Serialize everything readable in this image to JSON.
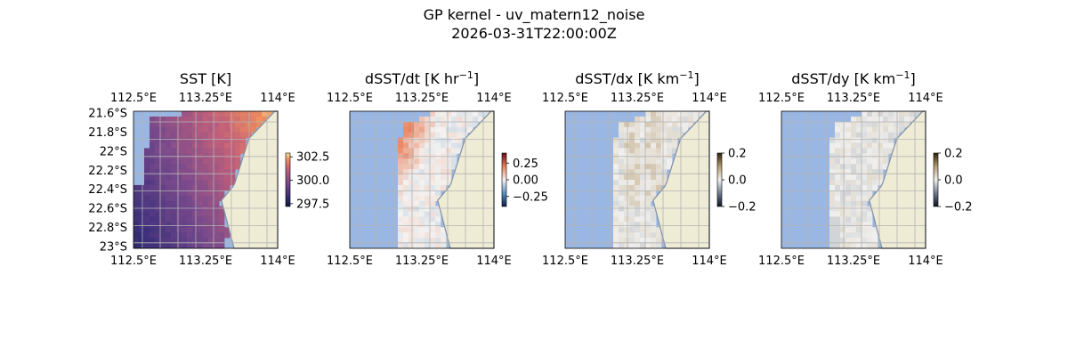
{
  "figure": {
    "title_line1": "GP kernel - uv_matern12_noise",
    "title_line2": "2026-03-31T22:00:00Z"
  },
  "colors": {
    "ocean_mask": "#9ab7e3",
    "land": "#efecd6",
    "coast": "#7f8ea3",
    "grid": "#b3b3b3"
  },
  "chart_data": [
    {
      "type": "heatmap",
      "title": "SST [K]",
      "colormap": "thermal",
      "colorbar": {
        "range": [
          297.2,
          302.9
        ],
        "ticks": [
          297.5,
          300.0,
          302.5
        ],
        "tick_labels": [
          "297.5",
          "300.0",
          "302.5"
        ]
      },
      "x_ticks": [
        "112.5°E",
        "113.25°E",
        "114°E"
      ],
      "x_tick_values": [
        112.5,
        113.25,
        114.0
      ],
      "y_ticks": [
        "21.6°S",
        "21.8°S",
        "22°S",
        "22.2°S",
        "22.4°S",
        "22.6°S",
        "22.8°S",
        "23°S"
      ],
      "y_tick_values": [
        -21.6,
        -21.8,
        -22.0,
        -22.2,
        -22.4,
        -22.6,
        -22.8,
        -23.0
      ],
      "xlim": [
        112.5,
        114.0
      ],
      "ylim": [
        -23.0,
        -21.6
      ],
      "grid": true,
      "field_summary": "SST ≈ 298 K offshore (west/south-west) rising to ≈ 302.5 K near the coast (north-east)"
    },
    {
      "type": "heatmap",
      "title": "dSST/dt [K hr",
      "title_sup": "−1",
      "title_end": "]",
      "colormap": "diverging-blue-white-red",
      "colorbar": {
        "range": [
          -0.4,
          0.4
        ],
        "ticks": [
          0.25,
          0.0,
          -0.25
        ],
        "tick_labels": [
          "0.25",
          "0.00",
          "−0.25"
        ]
      },
      "x_ticks": [
        "112.5°E",
        "113.25°E",
        "114°E"
      ],
      "x_tick_values": [
        112.5,
        113.25,
        114.0
      ],
      "xlim": [
        112.5,
        114.0
      ],
      "ylim": [
        -23.0,
        -21.6
      ],
      "grid": true,
      "field_summary": "positive warming band (≈ +0.2 K/hr) along the western edge of the data, near zero elsewhere"
    },
    {
      "type": "heatmap",
      "title": "dSST/dx [K km",
      "title_sup": "−1",
      "title_end": "]",
      "colormap": "diverging-dark-white-brown",
      "colorbar": {
        "range": [
          -0.2,
          0.2
        ],
        "ticks": [
          0.2,
          0.0,
          -0.2
        ],
        "tick_labels": [
          "0.2",
          "0.0",
          "−0.2"
        ]
      },
      "x_ticks": [
        "112.5°E",
        "113.25°E",
        "114°E"
      ],
      "x_tick_values": [
        112.5,
        113.25,
        114.0
      ],
      "xlim": [
        112.5,
        114.0
      ],
      "ylim": [
        -23.0,
        -21.6
      ],
      "grid": true,
      "field_summary": "mostly near zero with faint positive streaks north-south"
    },
    {
      "type": "heatmap",
      "title": "dSST/dy [K km",
      "title_sup": "−1",
      "title_end": "]",
      "colormap": "diverging-dark-white-brown",
      "colorbar": {
        "range": [
          -0.2,
          0.2
        ],
        "ticks": [
          0.2,
          0.0,
          -0.2
        ],
        "tick_labels": [
          "0.2",
          "0.0",
          "−0.2"
        ]
      },
      "x_ticks": [
        "112.5°E",
        "113.25°E",
        "114°E"
      ],
      "x_tick_values": [
        112.5,
        113.25,
        114.0
      ],
      "xlim": [
        112.5,
        114.0
      ],
      "ylim": [
        -23.0,
        -21.6
      ],
      "grid": true,
      "field_summary": "mostly near zero with small negative patches in the south"
    }
  ]
}
